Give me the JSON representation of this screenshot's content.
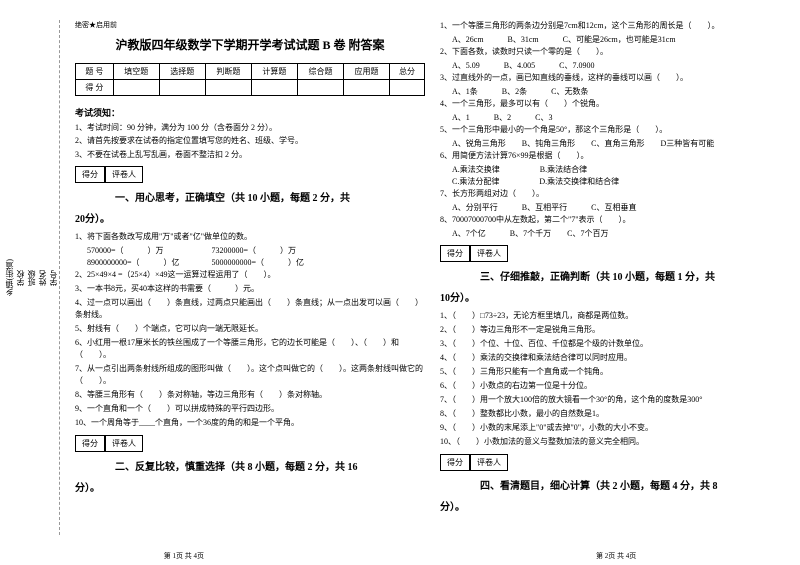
{
  "sidebar": {
    "items": [
      {
        "label": "学号",
        "field": "___"
      },
      {
        "label": "姓名",
        "field": "___"
      },
      {
        "label": "班级",
        "field": "___"
      },
      {
        "label": "学校",
        "field": "___"
      },
      {
        "label": "乡镇(街道)",
        "field": "___"
      }
    ],
    "markers": [
      "题",
      "答",
      "本",
      "内",
      "线",
      "封",
      "密"
    ]
  },
  "header": {
    "secret": "绝密★启用前",
    "title": "沪教版四年级数学下学期开学考试试题 B 卷 附答案"
  },
  "scoreTable": {
    "row1": [
      "题 号",
      "填空题",
      "选择题",
      "判断题",
      "计算题",
      "综合题",
      "应用题",
      "总分"
    ],
    "row2": [
      "得 分",
      "",
      "",
      "",
      "",
      "",
      "",
      ""
    ]
  },
  "notice": {
    "title": "考试须知：",
    "items": [
      "1、考试时间：90 分钟，满分为 100 分（含卷面分 2 分）。",
      "2、请首先按要求在试卷的指定位置填写您的姓名、班级、学号。",
      "3、不要在试卷上乱写乱画，卷面不整洁扣 2 分。"
    ]
  },
  "scoreBox": {
    "c1": "得分",
    "c2": "评卷人"
  },
  "s1": {
    "title": "一、用心思考，正确填空（共 10 小题，每题 2 分，共",
    "title2": "20分）。",
    "q1": "1、将下面各数改写成用\"万\"或者\"亿\"做单位的数。",
    "q1a": "570000=（　　　）万　　　　　　73200000=（　　　）万",
    "q1b": "8900000000=（　　　）亿　　　　5000000000=（　　　）亿",
    "q2": "2、25×49×4 =（25×4）×49这一运算过程运用了（　　）。",
    "q3": "3、一本书8元，买40本这样的书需要（　　　）元。",
    "q4": "4、过一点可以画出（　　）条直线，过两点只能画出（　　）条直线；从一点出发可以画（　　）条射线。",
    "q5": "5、射线有（　　）个端点，它可以向一端无限延长。",
    "q6": "6、小红用一根17厘米长的铁丝围成了一个等腰三角形，它的边长可能是（　　）、（　　）和（　　）。",
    "q7": "7、从一点引出两条射线所组成的图形叫做（　　）。这个点叫做它的（　　）。这两条射线叫做它的（　　）。",
    "q8": "8、等腰三角形有（　　）条对称轴，等边三角形有（　　）条对称轴。",
    "q9": "9、一个直角和一个（　　）可以拼成特殊的平行四边形。",
    "q10": "10、一个周角等于____个直角，一个36度的角的和是一个平角。"
  },
  "s2": {
    "title": "二、反复比较，慎重选择（共 8 小题，每题 2 分，共 16",
    "title2": "分）。",
    "q1": "1、一个等腰三角形的两条边分别是7cm和12cm，这个三角形的周长是（　　）。",
    "q1o": "A、26cm　　　B、31cm　　　C、可能是26cm，也可能是31cm",
    "q2": "2、下面各数，读数时只读一个零的是（　　）。",
    "q2o": "A、5.09　　　B、4.005　　　C、7.0900",
    "q3": "3、过直线外的一点，画已知直线的垂线，这样的垂线可以画（　　）。",
    "q3o": "A、1条　　　B、2条　　　C、无数条",
    "q4": "4、一个三角形，最多可以有（　　）个锐角。",
    "q4o": "A、1　　　B、2　　　C、3",
    "q5": "5、一个三角形中最小的一个角是50°，那这个三角形是（　　）。",
    "q5o": "A、锐角三角形　　B、钝角三角形　　C、直角三角形　　D三种皆有可能",
    "q6": "6、用简便方法计算76×99是根据（　　）。",
    "q6o1": "A.乘法交换律　　　　　B.乘法结合律",
    "q6o2": "C.乘法分配律　　　　　D.乘法交换律和结合律",
    "q7": "7、长方形两组对边（　　）。",
    "q7o": "A、分别平行　　　B、互相平行　　　C、互相垂直",
    "q8": "8、70007000700中从左数起，第二个\"7\"表示（　　）。",
    "q8o": "A、7个亿　　　B、7个千万　　C、7个百万"
  },
  "s3": {
    "title": "三、仔细推敲，正确判断（共 10 小题，每题 1 分，共",
    "title2": "10分）。",
    "q1": "1、（　　）□73÷23，无论方框里填几，商都是两位数。",
    "q2": "2、（　　）等边三角形不一定是锐角三角形。",
    "q3": "3、（　　）个位、十位、百位、千位都是个级的计数单位。",
    "q4": "4、（　　）乘法的交换律和乘法结合律可以同时应用。",
    "q5": "5、（　　）三角形只能有一个直角或一个钝角。",
    "q6": "6、（　　）小数点的右边第一位是十分位。",
    "q7": "7、（　　）用一个放大100倍的放大镜看一个30°的角，这个角的度数是300°",
    "q8": "8、（　　）整数都比小数，最小的自然数是1。",
    "q9": "9、（　　）小数的末尾添上\"0\"或去掉\"0\"，小数的大小不变。",
    "q10": "10、（　　）小数加法的意义与整数加法的意义完全相同。"
  },
  "s4": {
    "title": "四、看清题目，细心计算（共 2 小题，每题 4 分，共 8",
    "title2": "分）。"
  },
  "footer": "第 1页 共 4页　　　　　　　　　　　　　　　　　　　　　　　　　　　　　　　　　　　　　　　　　　　　　　　　　　　　　　　　第 2页 共 4页"
}
